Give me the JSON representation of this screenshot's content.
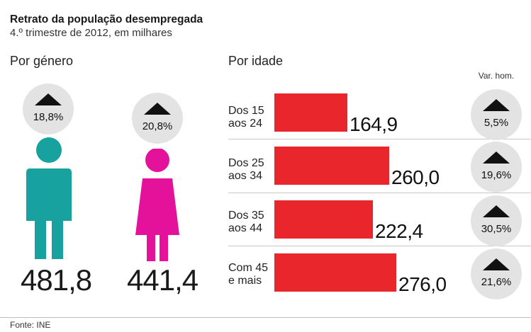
{
  "title": "Retrato da população desempregada",
  "subtitle": "4.º trimestre de 2012, em milhares",
  "gender_section_label": "Por género",
  "age_section_label": "Por idade",
  "var_label": "Var. hom.",
  "source": "Fonte: INE",
  "colors": {
    "male": "#17a2a0",
    "female": "#e4119a",
    "bar": "#e8262c",
    "badge": "#e3e3e3"
  },
  "chart_data": [
    {
      "type": "pictograph",
      "categories": [
        "Homens",
        "Mulheres"
      ],
      "values": [
        481.8,
        441.4
      ],
      "value_labels": [
        "481,8",
        "441,4"
      ],
      "change_labels": [
        "18,8%",
        "20,8%"
      ],
      "change_direction": [
        "up",
        "up"
      ],
      "icons": [
        "male-person-icon",
        "female-person-icon"
      ]
    },
    {
      "type": "bar",
      "orientation": "horizontal",
      "categories": [
        "Dos 15\naos 24",
        "Dos 25\naos 34",
        "Dos 35\naos 44",
        "Com 45\ne mais"
      ],
      "values": [
        164.9,
        260.0,
        222.4,
        276.0
      ],
      "value_labels": [
        "164,9",
        "260,0",
        "222,4",
        "276,0"
      ],
      "change_labels": [
        "5,5%",
        "19,6%",
        "30,5%",
        "21,6%"
      ],
      "change_direction": [
        "up",
        "up",
        "up",
        "up"
      ],
      "xlim": [
        0,
        276.0
      ]
    }
  ]
}
